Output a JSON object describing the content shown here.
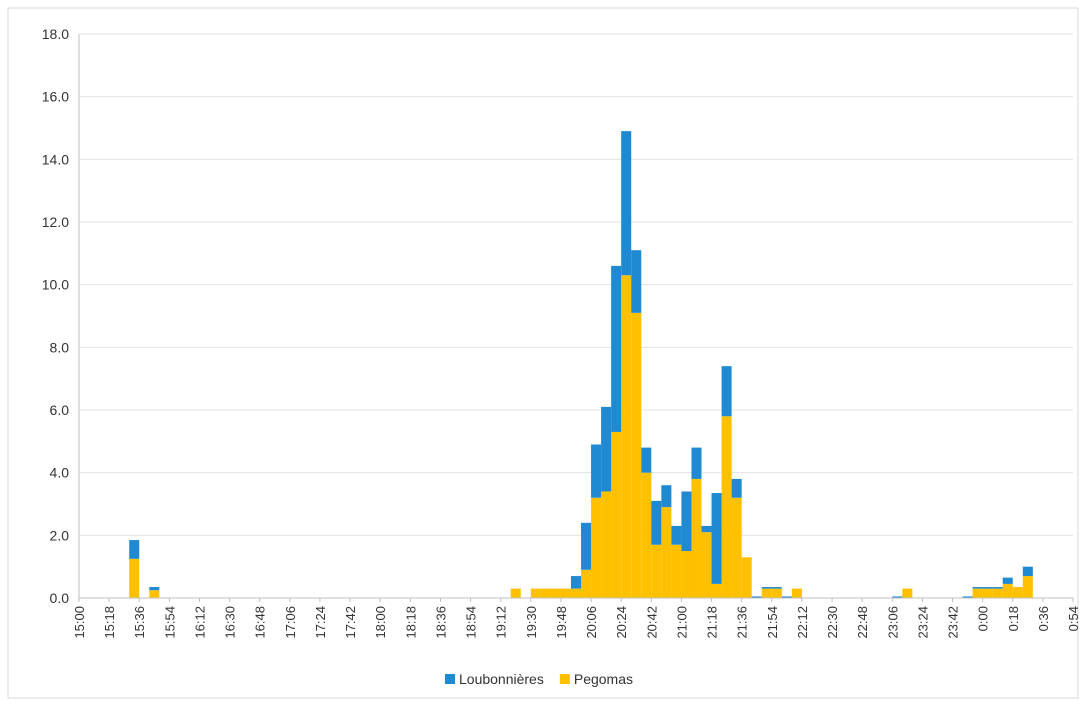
{
  "chart_data": {
    "type": "bar",
    "stacked": true,
    "title": "",
    "xlabel": "",
    "ylabel": "",
    "ylim": [
      0,
      18
    ],
    "yticks": [
      "0.0",
      "2.0",
      "4.0",
      "6.0",
      "8.0",
      "10.0",
      "12.0",
      "14.0",
      "16.0",
      "18.0"
    ],
    "x_tick_labels": [
      "15:00",
      "15:18",
      "15:36",
      "15:54",
      "16:12",
      "16:30",
      "16:48",
      "17:06",
      "17:24",
      "17:42",
      "18:00",
      "18:18",
      "18:36",
      "18:54",
      "19:12",
      "19:30",
      "19:48",
      "20:06",
      "20:24",
      "20:42",
      "21:00",
      "21:18",
      "21:36",
      "21:54",
      "22:12",
      "22:30",
      "22:48",
      "23:06",
      "23:24",
      "23:42",
      "0:00",
      "0:18",
      "0:36",
      "0:54"
    ],
    "interval_minutes": 6,
    "grid": true,
    "legend_position": "bottom",
    "series": [
      {
        "name": "Loubonnières",
        "color": "#1f8ad2",
        "points": [
          [
            "15:30",
            0.6
          ],
          [
            "15:42",
            0.1
          ],
          [
            "19:54",
            0.4
          ],
          [
            "20:00",
            1.5
          ],
          [
            "20:06",
            1.7
          ],
          [
            "20:12",
            2.7
          ],
          [
            "20:18",
            5.3
          ],
          [
            "20:24",
            4.6
          ],
          [
            "20:30",
            2.0
          ],
          [
            "20:36",
            0.8
          ],
          [
            "20:42",
            1.4
          ],
          [
            "20:48",
            0.7
          ],
          [
            "20:54",
            0.6
          ],
          [
            "21:00",
            1.9
          ],
          [
            "21:06",
            1.0
          ],
          [
            "21:12",
            0.2
          ],
          [
            "21:18",
            2.9
          ],
          [
            "21:24",
            1.6
          ],
          [
            "21:30",
            0.6
          ],
          [
            "21:42",
            0.05
          ],
          [
            "21:48",
            0.05
          ],
          [
            "21:54",
            0.05
          ],
          [
            "22:00",
            0.05
          ],
          [
            "23:06",
            0.05
          ],
          [
            "23:48",
            0.05
          ],
          [
            "23:54",
            0.05
          ],
          [
            "0:00",
            0.05
          ],
          [
            "0:06",
            0.05
          ],
          [
            "0:12",
            0.2
          ],
          [
            "0:24",
            0.3
          ]
        ]
      },
      {
        "name": "Pegomas",
        "color": "#ffc000",
        "points": [
          [
            "15:30",
            1.25
          ],
          [
            "15:42",
            0.25
          ],
          [
            "19:18",
            0.3
          ],
          [
            "19:30",
            0.3
          ],
          [
            "19:36",
            0.3
          ],
          [
            "19:42",
            0.3
          ],
          [
            "19:48",
            0.3
          ],
          [
            "19:54",
            0.3
          ],
          [
            "20:00",
            0.9
          ],
          [
            "20:06",
            3.2
          ],
          [
            "20:12",
            3.4
          ],
          [
            "20:18",
            5.3
          ],
          [
            "20:24",
            10.3
          ],
          [
            "20:30",
            9.1
          ],
          [
            "20:36",
            4.0
          ],
          [
            "20:42",
            1.7
          ],
          [
            "20:48",
            2.9
          ],
          [
            "20:54",
            1.7
          ],
          [
            "21:00",
            1.5
          ],
          [
            "21:06",
            3.8
          ],
          [
            "21:12",
            2.1
          ],
          [
            "21:18",
            0.45
          ],
          [
            "21:24",
            5.8
          ],
          [
            "21:30",
            3.2
          ],
          [
            "21:36",
            1.3
          ],
          [
            "21:48",
            0.3
          ],
          [
            "21:54",
            0.3
          ],
          [
            "22:06",
            0.3
          ],
          [
            "23:12",
            0.3
          ],
          [
            "23:54",
            0.3
          ],
          [
            "0:00",
            0.3
          ],
          [
            "0:06",
            0.3
          ],
          [
            "0:12",
            0.45
          ],
          [
            "0:18",
            0.35
          ],
          [
            "0:24",
            0.7
          ]
        ]
      }
    ]
  }
}
